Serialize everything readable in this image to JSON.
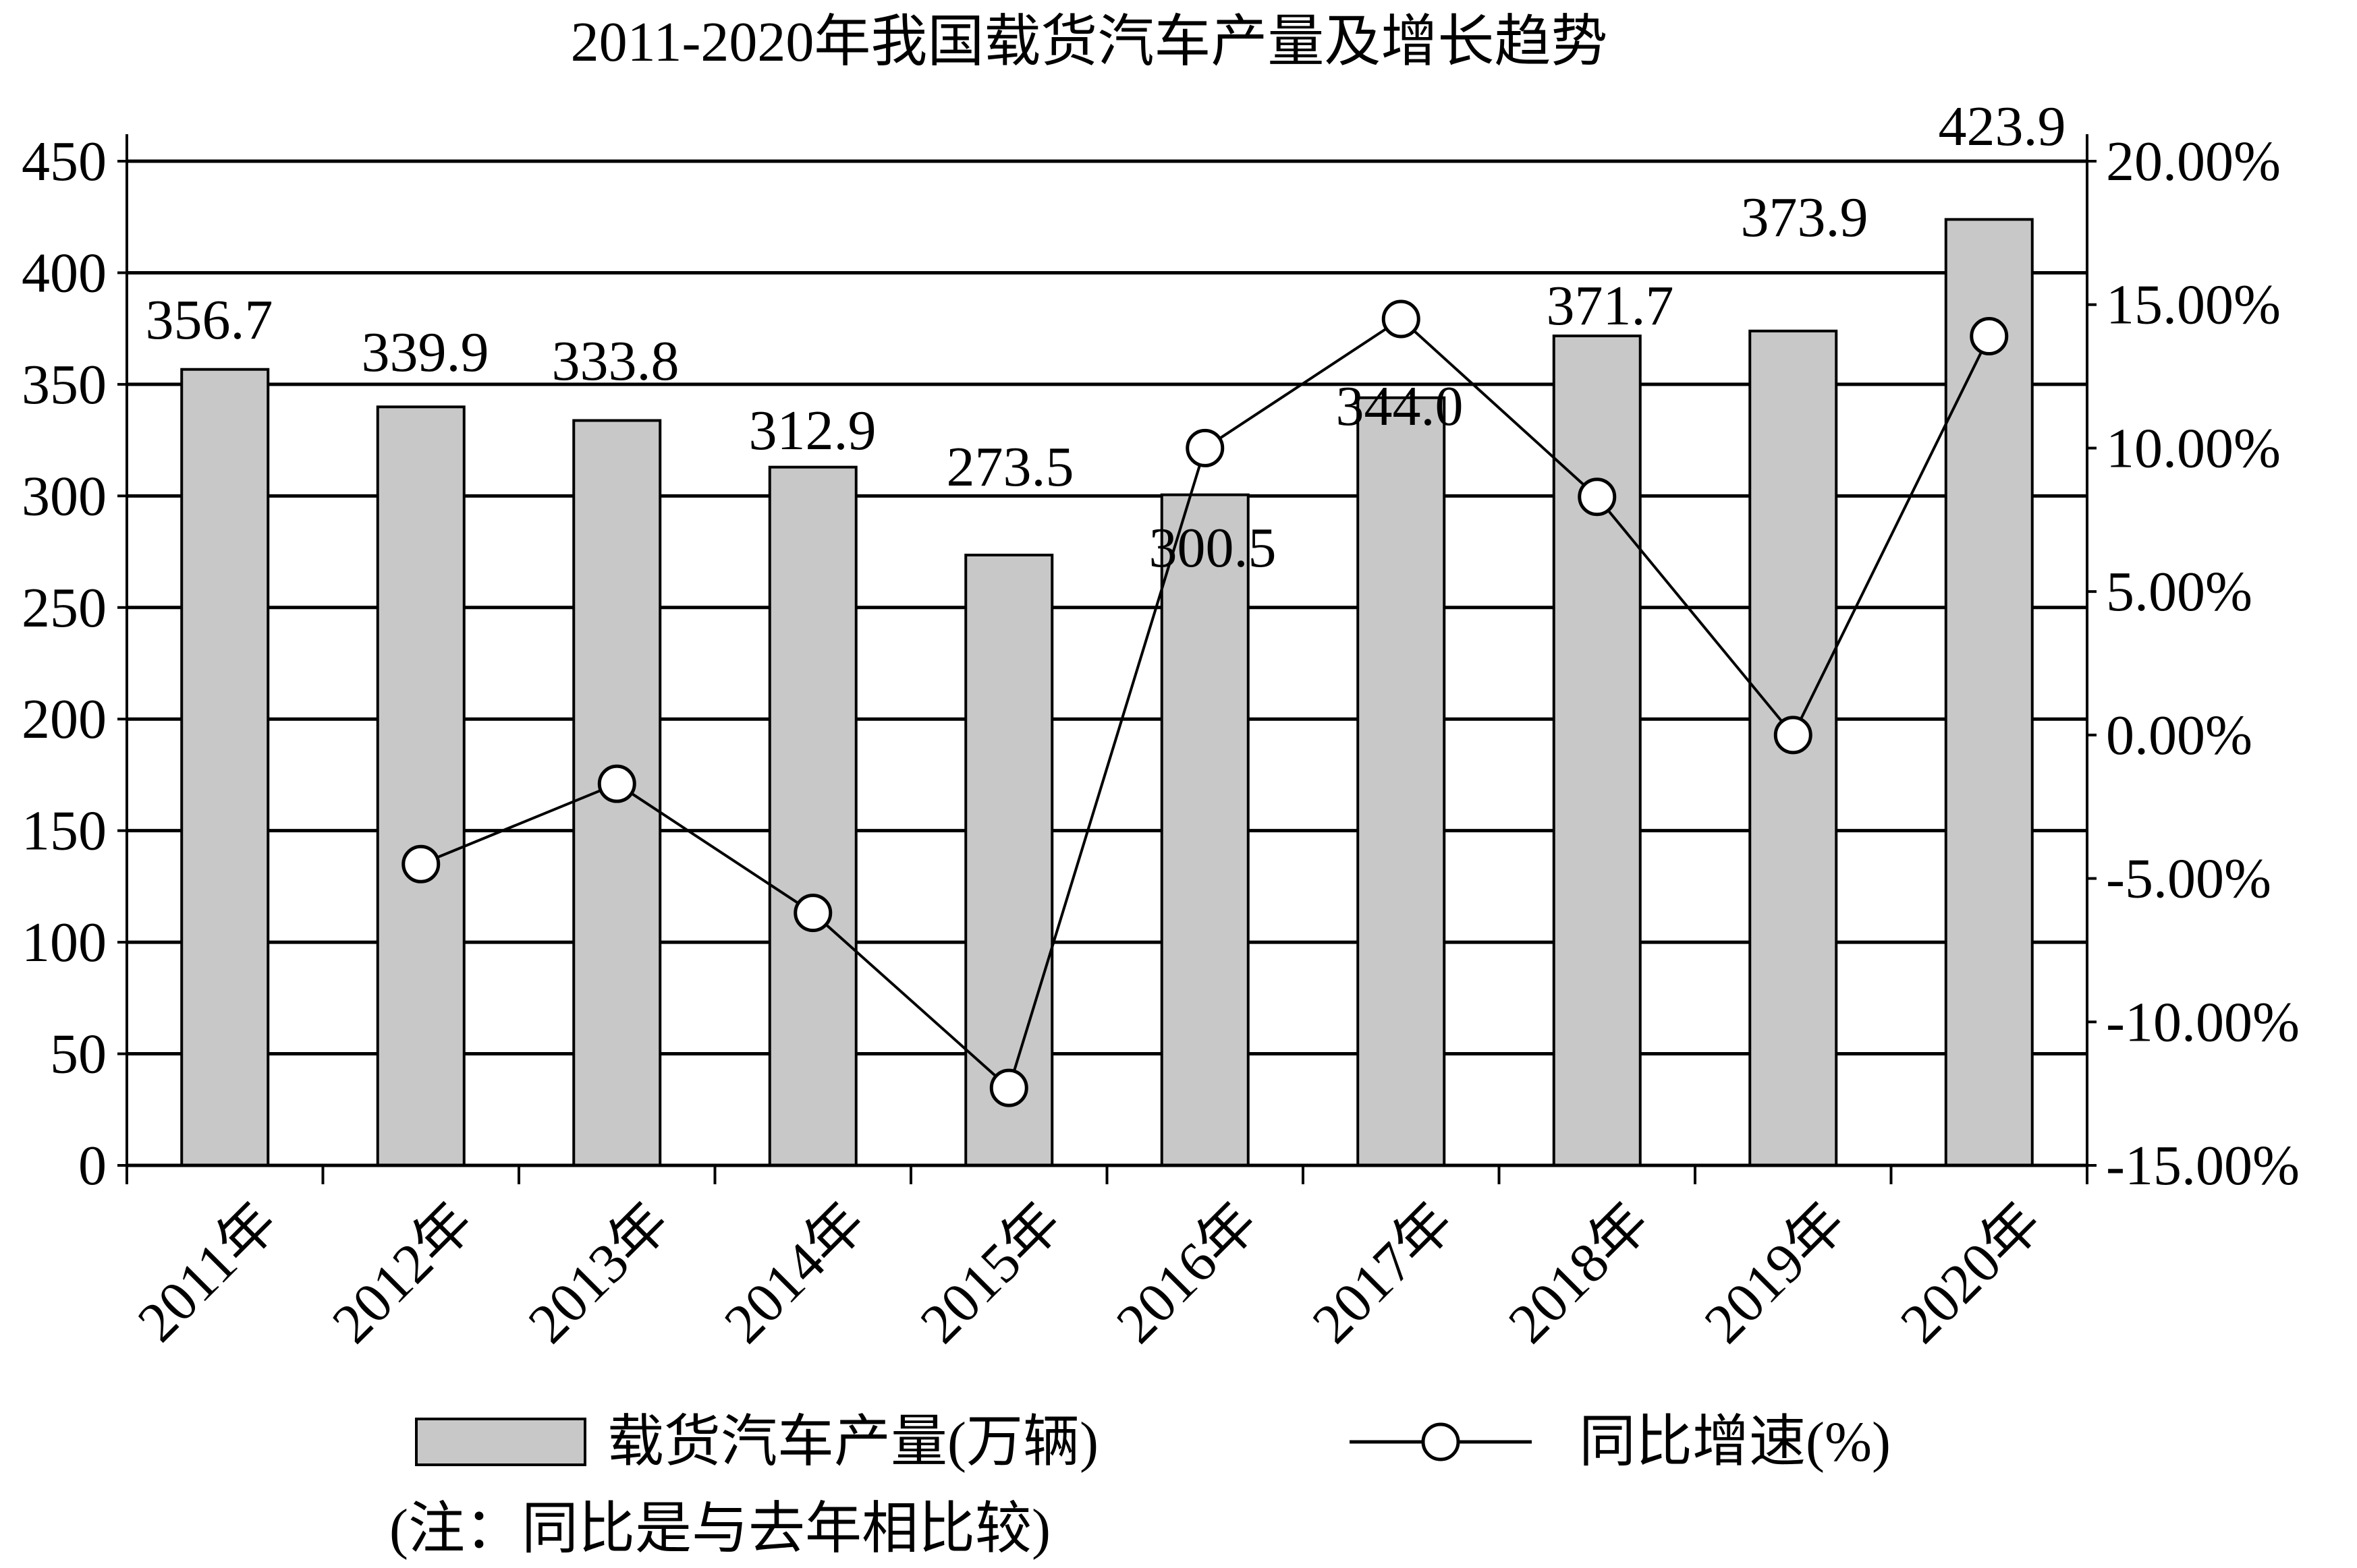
{
  "chart_data": {
    "type": "bar",
    "title": "2011-2020年我国载货汽车产量及增长趋势",
    "categories": [
      "2011年",
      "2012年",
      "2013年",
      "2014年",
      "2015年",
      "2016年",
      "2017年",
      "2018年",
      "2019年",
      "2020年"
    ],
    "series": [
      {
        "name": "载货汽车产量(万辆)",
        "type": "bar",
        "axis": "left",
        "values": [
          356.7,
          339.9,
          333.8,
          312.9,
          273.5,
          300.5,
          344.0,
          371.7,
          373.9,
          423.9
        ],
        "labels": [
          "356.7",
          "339.9",
          "333.8",
          "312.9",
          "273.5",
          "300.5",
          "344.0",
          "371.7",
          "373.9",
          "423.9"
        ],
        "color": "#c8c8c8"
      },
      {
        "name": "同比增速(%)",
        "type": "line",
        "axis": "right",
        "values": [
          null,
          -4.5,
          -1.7,
          -6.2,
          -12.3,
          10.0,
          14.5,
          8.3,
          0.0,
          13.9
        ],
        "color": "#000000"
      }
    ],
    "y_left": {
      "min": 0,
      "max": 450,
      "ticks": [
        0,
        50,
        100,
        150,
        200,
        250,
        300,
        350,
        400,
        450
      ],
      "tick_labels": [
        "0",
        "50",
        "100",
        "150",
        "200",
        "250",
        "300",
        "350",
        "400",
        "450"
      ]
    },
    "y_right": {
      "min": -15,
      "max": 20,
      "ticks": [
        -15,
        -10,
        -5,
        0,
        5,
        10,
        15,
        20
      ],
      "tick_labels": [
        "-15.00%",
        "-10.00%",
        "-5.00%",
        "0.00%",
        "5.00%",
        "10.00%",
        "15.00%",
        "20.00%"
      ]
    },
    "grid": true,
    "legend_position": "bottom",
    "note": "(注：同比是与去年相比较)"
  }
}
